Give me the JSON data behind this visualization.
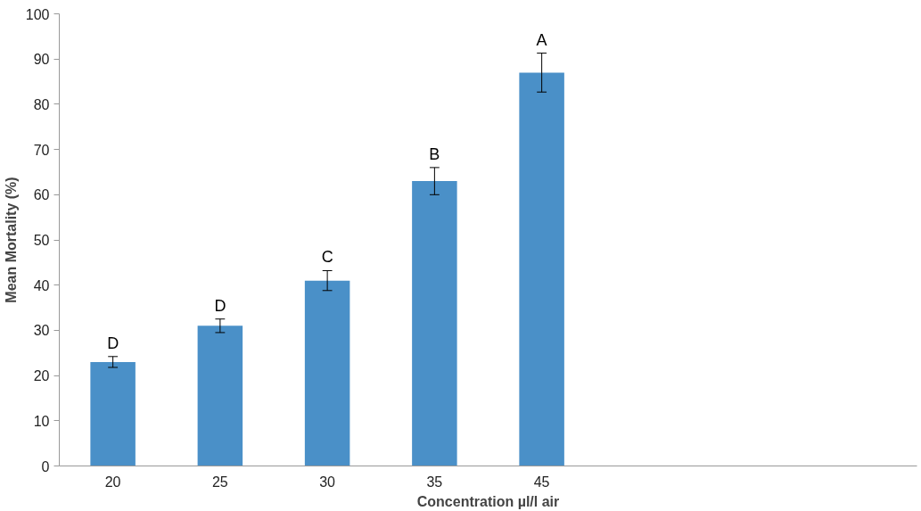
{
  "chart_data": {
    "type": "bar",
    "xlabel": "Concentration µl/l air",
    "ylabel": "Mean Mortality (%)",
    "categories": [
      "20",
      "25",
      "30",
      "35",
      "45",
      null,
      null,
      null
    ],
    "values": [
      23,
      31,
      41,
      63,
      87,
      null,
      null,
      null
    ],
    "errors": [
      1.2,
      1.5,
      2.2,
      3,
      4.3,
      null,
      null,
      null
    ],
    "color": "#4a90c8",
    "ylim": [
      0,
      100
    ],
    "yticks": [
      0,
      10,
      20,
      30,
      40,
      50,
      60,
      70,
      80,
      90,
      100
    ],
    "grid": false,
    "annotations": [
      "D",
      "D",
      "C",
      "B",
      "A"
    ]
  }
}
